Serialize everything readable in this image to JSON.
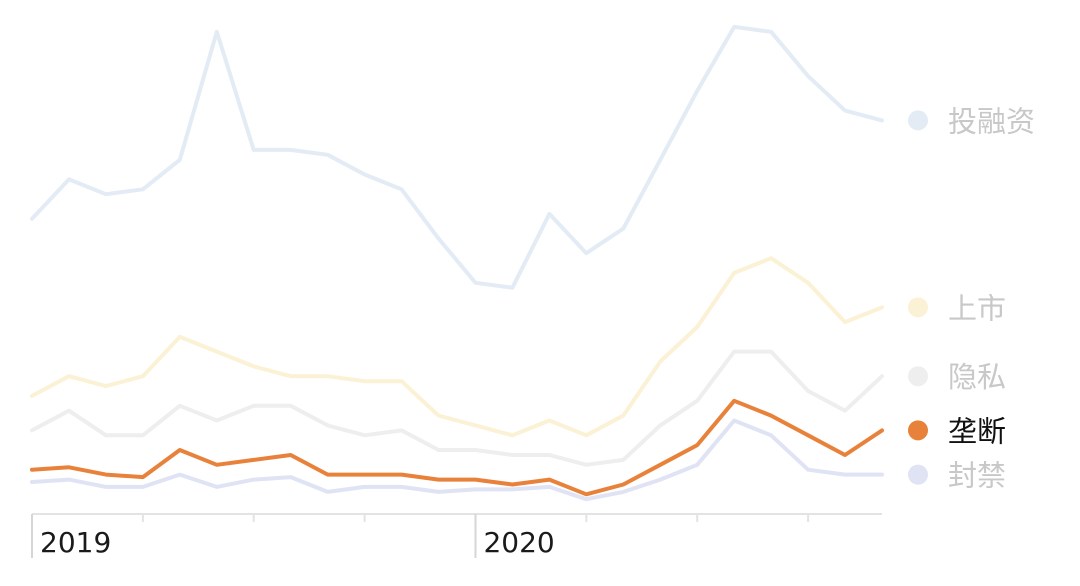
{
  "chart_data": {
    "type": "line",
    "title": "",
    "xlabel": "",
    "ylabel": "",
    "grid": false,
    "legend_position": "right",
    "ylim": [
      0,
      100
    ],
    "x": [
      "2019-01",
      "2019-02",
      "2019-03",
      "2019-04",
      "2019-05",
      "2019-06",
      "2019-07",
      "2019-08",
      "2019-09",
      "2019-10",
      "2019-11",
      "2019-12",
      "2020-01",
      "2020-02",
      "2020-03",
      "2020-04",
      "2020-05",
      "2020-06",
      "2020-07",
      "2020-08",
      "2020-09",
      "2020-10",
      "2020-11",
      "2020-12"
    ],
    "x_tick_labels": [
      {
        "x": "2019-01",
        "label": "2019"
      },
      {
        "x": "2020-01",
        "label": "2020"
      }
    ],
    "minor_ticks": [
      "2019-01",
      "2019-04",
      "2019-07",
      "2019-10",
      "2020-01",
      "2020-04",
      "2020-07",
      "2020-10"
    ],
    "series": [
      {
        "name": "投融资",
        "color": "#e3ebf5",
        "highlight": false,
        "values": [
          60,
          68,
          65,
          66,
          72,
          98,
          74,
          74,
          73,
          69,
          66,
          56,
          47,
          46,
          61,
          53,
          58,
          72,
          86,
          99,
          98,
          89,
          82,
          80
        ]
      },
      {
        "name": "上市",
        "color": "#fbf1d4",
        "highlight": false,
        "values": [
          24,
          28,
          26,
          28,
          36,
          33,
          30,
          28,
          28,
          27,
          27,
          20,
          18,
          16,
          19,
          16,
          20,
          31,
          38,
          49,
          52,
          47,
          39,
          42
        ]
      },
      {
        "name": "隐私",
        "color": "#eeeeee",
        "highlight": false,
        "values": [
          17,
          21,
          16,
          16,
          22,
          19,
          22,
          22,
          18,
          16,
          17,
          13,
          13,
          12,
          12,
          10,
          11,
          18,
          23,
          33,
          33,
          25,
          21,
          28
        ]
      },
      {
        "name": "垄断",
        "color": "#e8823a",
        "highlight": true,
        "values": [
          9,
          9.5,
          8,
          7.5,
          13,
          10,
          11,
          12,
          8,
          8,
          8,
          7,
          7,
          6,
          7,
          4,
          6,
          10,
          14,
          23,
          20,
          16,
          12,
          17
        ]
      },
      {
        "name": "封禁",
        "color": "#dfe3f4",
        "highlight": false,
        "values": [
          6.5,
          7,
          5.5,
          5.5,
          8,
          5.5,
          7,
          7.5,
          4.5,
          5.5,
          5.5,
          4.5,
          5,
          5,
          5.5,
          3,
          4.5,
          7,
          10,
          19,
          16,
          9,
          8,
          8
        ]
      }
    ]
  }
}
